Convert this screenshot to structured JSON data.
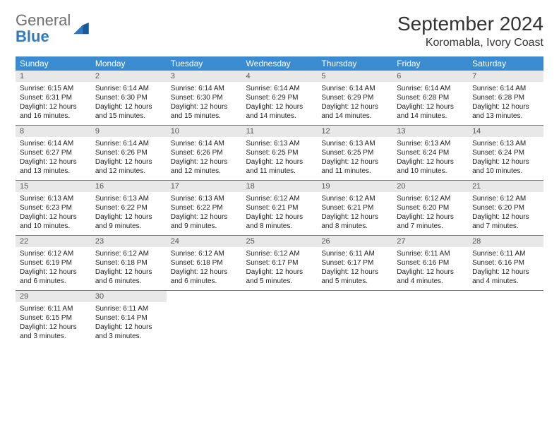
{
  "logo": {
    "word1": "General",
    "word2": "Blue"
  },
  "title": "September 2024",
  "location": "Koromabla, Ivory Coast",
  "colors": {
    "header_bg": "#3b8bd0",
    "header_text": "#ffffff",
    "daynum_bg": "#e8e8e8",
    "logo_gray": "#6f6f6f",
    "logo_blue": "#2f79c2"
  },
  "dow": [
    "Sunday",
    "Monday",
    "Tuesday",
    "Wednesday",
    "Thursday",
    "Friday",
    "Saturday"
  ],
  "weeks": [
    [
      {
        "n": "1",
        "sr": "6:15 AM",
        "ss": "6:31 PM",
        "dl": "12 hours and 16 minutes."
      },
      {
        "n": "2",
        "sr": "6:14 AM",
        "ss": "6:30 PM",
        "dl": "12 hours and 15 minutes."
      },
      {
        "n": "3",
        "sr": "6:14 AM",
        "ss": "6:30 PM",
        "dl": "12 hours and 15 minutes."
      },
      {
        "n": "4",
        "sr": "6:14 AM",
        "ss": "6:29 PM",
        "dl": "12 hours and 14 minutes."
      },
      {
        "n": "5",
        "sr": "6:14 AM",
        "ss": "6:29 PM",
        "dl": "12 hours and 14 minutes."
      },
      {
        "n": "6",
        "sr": "6:14 AM",
        "ss": "6:28 PM",
        "dl": "12 hours and 14 minutes."
      },
      {
        "n": "7",
        "sr": "6:14 AM",
        "ss": "6:28 PM",
        "dl": "12 hours and 13 minutes."
      }
    ],
    [
      {
        "n": "8",
        "sr": "6:14 AM",
        "ss": "6:27 PM",
        "dl": "12 hours and 13 minutes."
      },
      {
        "n": "9",
        "sr": "6:14 AM",
        "ss": "6:26 PM",
        "dl": "12 hours and 12 minutes."
      },
      {
        "n": "10",
        "sr": "6:14 AM",
        "ss": "6:26 PM",
        "dl": "12 hours and 12 minutes."
      },
      {
        "n": "11",
        "sr": "6:13 AM",
        "ss": "6:25 PM",
        "dl": "12 hours and 11 minutes."
      },
      {
        "n": "12",
        "sr": "6:13 AM",
        "ss": "6:25 PM",
        "dl": "12 hours and 11 minutes."
      },
      {
        "n": "13",
        "sr": "6:13 AM",
        "ss": "6:24 PM",
        "dl": "12 hours and 10 minutes."
      },
      {
        "n": "14",
        "sr": "6:13 AM",
        "ss": "6:24 PM",
        "dl": "12 hours and 10 minutes."
      }
    ],
    [
      {
        "n": "15",
        "sr": "6:13 AM",
        "ss": "6:23 PM",
        "dl": "12 hours and 10 minutes."
      },
      {
        "n": "16",
        "sr": "6:13 AM",
        "ss": "6:22 PM",
        "dl": "12 hours and 9 minutes."
      },
      {
        "n": "17",
        "sr": "6:13 AM",
        "ss": "6:22 PM",
        "dl": "12 hours and 9 minutes."
      },
      {
        "n": "18",
        "sr": "6:12 AM",
        "ss": "6:21 PM",
        "dl": "12 hours and 8 minutes."
      },
      {
        "n": "19",
        "sr": "6:12 AM",
        "ss": "6:21 PM",
        "dl": "12 hours and 8 minutes."
      },
      {
        "n": "20",
        "sr": "6:12 AM",
        "ss": "6:20 PM",
        "dl": "12 hours and 7 minutes."
      },
      {
        "n": "21",
        "sr": "6:12 AM",
        "ss": "6:20 PM",
        "dl": "12 hours and 7 minutes."
      }
    ],
    [
      {
        "n": "22",
        "sr": "6:12 AM",
        "ss": "6:19 PM",
        "dl": "12 hours and 6 minutes."
      },
      {
        "n": "23",
        "sr": "6:12 AM",
        "ss": "6:18 PM",
        "dl": "12 hours and 6 minutes."
      },
      {
        "n": "24",
        "sr": "6:12 AM",
        "ss": "6:18 PM",
        "dl": "12 hours and 6 minutes."
      },
      {
        "n": "25",
        "sr": "6:12 AM",
        "ss": "6:17 PM",
        "dl": "12 hours and 5 minutes."
      },
      {
        "n": "26",
        "sr": "6:11 AM",
        "ss": "6:17 PM",
        "dl": "12 hours and 5 minutes."
      },
      {
        "n": "27",
        "sr": "6:11 AM",
        "ss": "6:16 PM",
        "dl": "12 hours and 4 minutes."
      },
      {
        "n": "28",
        "sr": "6:11 AM",
        "ss": "6:16 PM",
        "dl": "12 hours and 4 minutes."
      }
    ],
    [
      {
        "n": "29",
        "sr": "6:11 AM",
        "ss": "6:15 PM",
        "dl": "12 hours and 3 minutes."
      },
      {
        "n": "30",
        "sr": "6:11 AM",
        "ss": "6:14 PM",
        "dl": "12 hours and 3 minutes."
      },
      null,
      null,
      null,
      null,
      null
    ]
  ],
  "labels": {
    "sunrise": "Sunrise: ",
    "sunset": "Sunset: ",
    "daylight": "Daylight: "
  }
}
